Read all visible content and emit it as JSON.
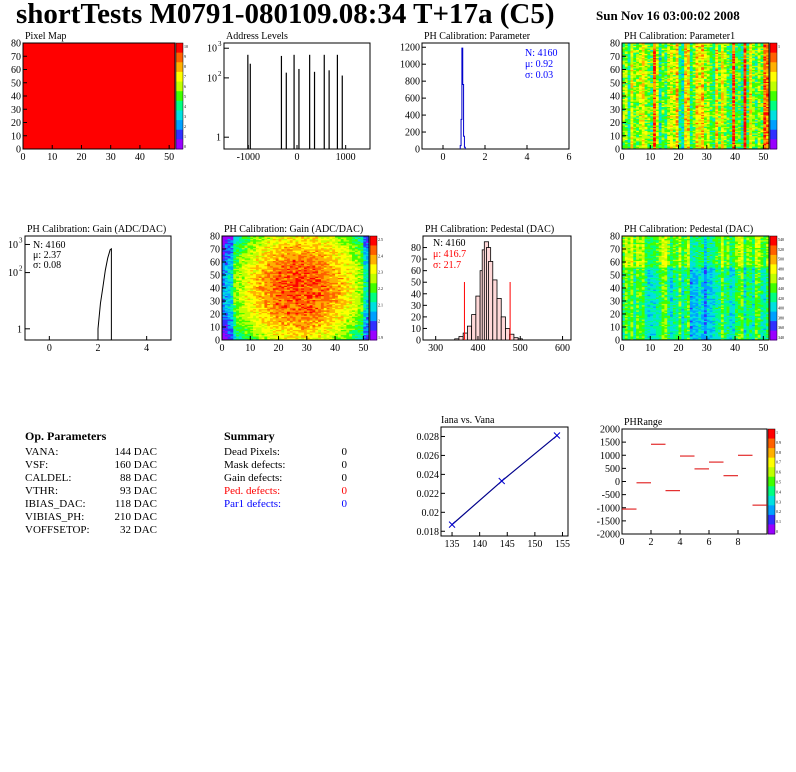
{
  "header": {
    "title": "shortTests M0791-080109.08:34 T+17a (C5)",
    "date": "Sun Nov 16 03:00:02 2008"
  },
  "colors": {
    "frame": "#000000",
    "palette": [
      "#9900ff",
      "#3030ff",
      "#00a0ff",
      "#00e0e0",
      "#00ff80",
      "#40ff00",
      "#c0ff00",
      "#ffff00",
      "#ffb000",
      "#ff6000",
      "#ff0000"
    ],
    "summary_red": "#ff0000",
    "summary_blue": "#0000ff",
    "calib_line": "#00008b"
  },
  "chart_data": [
    {
      "id": "pixel-map",
      "type": "heatmap",
      "title": "Pixel Map",
      "xlim": [
        0,
        52
      ],
      "ylim": [
        0,
        80
      ],
      "xticks": [
        "0",
        "10",
        "20",
        "30",
        "40",
        "50"
      ],
      "yticks": [
        "0",
        "10",
        "20",
        "30",
        "40",
        "50",
        "60",
        "70",
        "80"
      ],
      "fill_level": 10,
      "colorbar": [
        "10",
        "9",
        "8",
        "7",
        "6",
        "5",
        "4",
        "3",
        "2",
        "1",
        "0"
      ]
    },
    {
      "id": "address-levels",
      "type": "bar",
      "title": "Address Levels",
      "xlim": [
        -1500,
        1500
      ],
      "ylog": true,
      "ylim": [
        0.4,
        1500
      ],
      "xticks": [
        "-1000",
        "0",
        "1000"
      ],
      "yticks_mant": [
        "10",
        "10",
        "1"
      ],
      "yticks_exp": [
        "3",
        "2",
        ""
      ],
      "bars": [
        {
          "x": -1010,
          "y": 600
        },
        {
          "x": -960,
          "y": 300
        },
        {
          "x": -320,
          "y": 550
        },
        {
          "x": -220,
          "y": 150
        },
        {
          "x": -60,
          "y": 600
        },
        {
          "x": 40,
          "y": 200
        },
        {
          "x": 260,
          "y": 600
        },
        {
          "x": 360,
          "y": 160
        },
        {
          "x": 560,
          "y": 600
        },
        {
          "x": 660,
          "y": 180
        },
        {
          "x": 830,
          "y": 600
        },
        {
          "x": 930,
          "y": 120
        }
      ]
    },
    {
      "id": "ph-param",
      "type": "bar",
      "title": "PH Calibration: Parameter",
      "xlim": [
        -1,
        6
      ],
      "ylim": [
        0,
        1250
      ],
      "xticks": [
        "0",
        "2",
        "4",
        "6"
      ],
      "yticks": [
        "0",
        "200",
        "400",
        "600",
        "800",
        "1000",
        "1200"
      ],
      "bins": [
        {
          "x": 0.84,
          "y": 40
        },
        {
          "x": 0.88,
          "y": 350
        },
        {
          "x": 0.92,
          "y": 1190
        },
        {
          "x": 0.96,
          "y": 760
        },
        {
          "x": 1.0,
          "y": 150
        },
        {
          "x": 1.04,
          "y": 20
        }
      ],
      "stats": [
        "N: 4160",
        "μ: 0.92",
        "σ: 0.03"
      ]
    },
    {
      "id": "ph-param1",
      "type": "heatmap",
      "title": "PH Calibration: Parameter1",
      "xlim": [
        0,
        52
      ],
      "ylim": [
        0,
        80
      ],
      "xticks": [
        "0",
        "10",
        "20",
        "30",
        "40",
        "50"
      ],
      "yticks": [
        "0",
        "10",
        "20",
        "30",
        "40",
        "50",
        "60",
        "70",
        "80"
      ],
      "colorbar": [
        "1",
        "",
        "",
        "",
        "",
        "",
        "",
        "",
        "",
        "",
        ""
      ]
    },
    {
      "id": "gain-1d",
      "type": "line",
      "title": "PH Calibration: Gain (ADC/DAC)",
      "xlim": [
        -1,
        5
      ],
      "ylog": true,
      "ylim": [
        0.4,
        2000
      ],
      "xticks": [
        "0",
        "2",
        "4"
      ],
      "yticks_mant": [
        "10",
        "10",
        "1"
      ],
      "yticks_exp": [
        "3",
        "2",
        ""
      ],
      "curve": [
        [
          2.0,
          0.4
        ],
        [
          2.0,
          1.0
        ],
        [
          2.1,
          8
        ],
        [
          2.2,
          30
        ],
        [
          2.3,
          120
        ],
        [
          2.4,
          330
        ],
        [
          2.5,
          650
        ],
        [
          2.55,
          700
        ],
        [
          2.55,
          0.4
        ]
      ],
      "stats": [
        "N: 4160",
        "μ: 2.37",
        "σ: 0.08"
      ]
    },
    {
      "id": "gain-map",
      "type": "heatmap",
      "title": "PH Calibration: Gain (ADC/DAC)",
      "xlim": [
        0,
        52
      ],
      "ylim": [
        0,
        80
      ],
      "xticks": [
        "0",
        "10",
        "20",
        "30",
        "40",
        "50"
      ],
      "yticks": [
        "0",
        "10",
        "20",
        "30",
        "40",
        "50",
        "60",
        "70",
        "80"
      ],
      "colorbar": [
        "2.5",
        "2.4",
        "2.3",
        "2.2",
        "2.1",
        "2",
        "1.9"
      ]
    },
    {
      "id": "pedestal-1d",
      "type": "bar",
      "title": "PH Calibration: Pedestal (DAC)",
      "xlim": [
        270,
        620
      ],
      "ylim": [
        0,
        90
      ],
      "xticks": [
        "300",
        "400",
        "500",
        "600"
      ],
      "yticks": [
        "0",
        "10",
        "20",
        "30",
        "40",
        "50",
        "60",
        "70",
        "80"
      ],
      "bins": [
        {
          "x": 350,
          "y": 1
        },
        {
          "x": 360,
          "y": 3
        },
        {
          "x": 370,
          "y": 6
        },
        {
          "x": 380,
          "y": 12
        },
        {
          "x": 390,
          "y": 22
        },
        {
          "x": 400,
          "y": 38
        },
        {
          "x": 410,
          "y": 60
        },
        {
          "x": 415,
          "y": 78
        },
        {
          "x": 420,
          "y": 85
        },
        {
          "x": 425,
          "y": 80
        },
        {
          "x": 430,
          "y": 68
        },
        {
          "x": 440,
          "y": 52
        },
        {
          "x": 450,
          "y": 36
        },
        {
          "x": 460,
          "y": 20
        },
        {
          "x": 470,
          "y": 10
        },
        {
          "x": 480,
          "y": 5
        },
        {
          "x": 490,
          "y": 2
        },
        {
          "x": 500,
          "y": 1
        }
      ],
      "cut_lines": [
        368,
        476
      ],
      "stats": [
        "N: 4160",
        "μ: 416.7",
        "σ: 21.7"
      ]
    },
    {
      "id": "pedestal-map",
      "type": "heatmap",
      "title": "PH Calibration: Pedestal (DAC)",
      "xlim": [
        0,
        52
      ],
      "ylim": [
        0,
        80
      ],
      "xticks": [
        "0",
        "10",
        "20",
        "30",
        "40",
        "50"
      ],
      "yticks": [
        "0",
        "10",
        "20",
        "30",
        "40",
        "50",
        "60",
        "70",
        "80"
      ],
      "colorbar": [
        "540",
        "520",
        "500",
        "480",
        "460",
        "440",
        "420",
        "400",
        "380",
        "360",
        "340"
      ]
    },
    {
      "id": "iana-vana",
      "type": "line",
      "title": "Iana vs. Vana",
      "xlim": [
        133,
        156
      ],
      "ylim": [
        0.0175,
        0.029
      ],
      "xticks": [
        "135",
        "140",
        "145",
        "150",
        "155"
      ],
      "yticks": [
        "0.018",
        "0.02",
        "0.022",
        "0.024",
        "0.026",
        "0.028"
      ],
      "points": [
        [
          135,
          0.0187
        ],
        [
          144,
          0.0233
        ],
        [
          154,
          0.0281
        ]
      ]
    },
    {
      "id": "phrange",
      "type": "scatter",
      "title": "PHRange",
      "xlim": [
        0,
        10
      ],
      "ylim": [
        -2000,
        2000
      ],
      "xticks": [
        "0",
        "2",
        "4",
        "6",
        "8"
      ],
      "yticks": [
        "2000",
        "1500",
        "1000",
        "500",
        "0",
        "-500",
        "-1000",
        "-1500",
        "-2000"
      ],
      "segments": [
        {
          "x": 0,
          "y": -1050
        },
        {
          "x": 1,
          "y": -50
        },
        {
          "x": 2,
          "y": 1420
        },
        {
          "x": 3,
          "y": -350
        },
        {
          "x": 4,
          "y": 970
        },
        {
          "x": 5,
          "y": 480
        },
        {
          "x": 6,
          "y": 740
        },
        {
          "x": 7,
          "y": 220
        },
        {
          "x": 8,
          "y": 1000
        },
        {
          "x": 9,
          "y": -900
        }
      ],
      "colorbar": [
        "1",
        "0.9",
        "0.8",
        "0.7",
        "0.6",
        "0.5",
        "0.4",
        "0.3",
        "0.2",
        "0.1",
        "0"
      ]
    }
  ],
  "op_params": {
    "title": "Op. Parameters",
    "rows": [
      {
        "name": "VANA:",
        "value": "144 DAC"
      },
      {
        "name": "VSF:",
        "value": "160 DAC"
      },
      {
        "name": "CALDEL:",
        "value": "88 DAC"
      },
      {
        "name": "VTHR:",
        "value": "93 DAC"
      },
      {
        "name": "IBIAS_DAC:",
        "value": "118 DAC"
      },
      {
        "name": "VIBIAS_PH:",
        "value": "210 DAC"
      },
      {
        "name": "VOFFSETOP:",
        "value": "32 DAC"
      }
    ]
  },
  "summary": {
    "title": "Summary",
    "rows": [
      {
        "name": "Dead Pixels:",
        "value": "0",
        "color": "#000000"
      },
      {
        "name": "Mask defects:",
        "value": "0",
        "color": "#000000"
      },
      {
        "name": "Gain defects:",
        "value": "0",
        "color": "#000000"
      },
      {
        "name": "Ped. defects:",
        "value": "0",
        "color": "#ff0000"
      },
      {
        "name": "Par1 defects:",
        "value": "0",
        "color": "#0000ff"
      }
    ]
  }
}
